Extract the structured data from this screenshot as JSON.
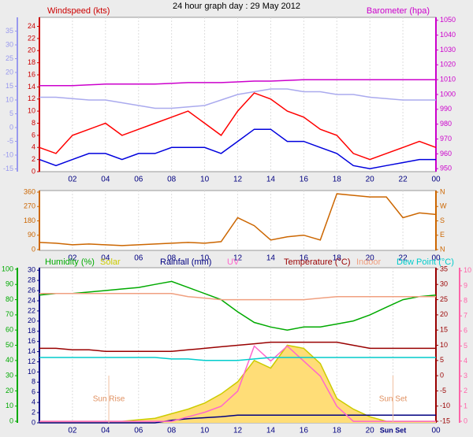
{
  "chart_data": [
    {
      "type": "line",
      "title": "24 hour graph day : 29 May 2012",
      "x": [
        0,
        1,
        2,
        3,
        4,
        5,
        6,
        7,
        8,
        9,
        10,
        11,
        12,
        13,
        14,
        15,
        16,
        17,
        18,
        19,
        20,
        21,
        22,
        23,
        24
      ],
      "xlim": [
        0,
        24
      ],
      "xticks": [
        {
          "value": 2,
          "label": "02"
        },
        {
          "value": 4,
          "label": "04"
        },
        {
          "value": 6,
          "label": "06"
        },
        {
          "value": 8,
          "label": "08"
        },
        10,
        12,
        14,
        16,
        18,
        20,
        22,
        {
          "value": 24,
          "label": "00"
        }
      ],
      "grid": true,
      "axes": [
        {
          "side": "left",
          "label": "Windspeed (kts)",
          "color": "#cc0000",
          "lim": [
            0,
            25.5
          ],
          "ticks": [
            0,
            2,
            4,
            6,
            8,
            10,
            12,
            14,
            16,
            18,
            20,
            22,
            24
          ]
        },
        {
          "side": "left",
          "color": "#9999ee",
          "lim": [
            -16,
            40
          ],
          "ticks": [
            -15,
            -10,
            -5,
            0,
            5,
            10,
            15,
            20,
            25,
            30,
            35
          ]
        },
        {
          "side": "right",
          "label": "Barometer (hpa)",
          "color": "#cc00cc",
          "lim": [
            948,
            1052
          ],
          "ticks": [
            950,
            960,
            970,
            980,
            990,
            1000,
            1010,
            1020,
            1030,
            1040,
            1050
          ]
        }
      ],
      "series": [
        {
          "color": "#ff0000",
          "axis": 0,
          "values": [
            4,
            3,
            6,
            7,
            8,
            6,
            7,
            8,
            9,
            10,
            8,
            6,
            10,
            13,
            12,
            10,
            9,
            7,
            6,
            3,
            2,
            3,
            4,
            5,
            4
          ]
        },
        {
          "color": "#0000dd",
          "axis": 0,
          "values": [
            2,
            1,
            2,
            3,
            3,
            2,
            3,
            3,
            4,
            4,
            4,
            3,
            5,
            7,
            7,
            5,
            5,
            4,
            3,
            1,
            0.5,
            1,
            1.5,
            2,
            2
          ]
        },
        {
          "color": "#aaaaee",
          "axis": 1,
          "values": [
            11,
            11,
            10.5,
            10,
            10,
            9,
            8,
            7,
            7,
            7.5,
            8,
            10,
            12,
            13,
            14,
            14,
            13,
            13,
            12,
            12,
            11,
            10.5,
            10,
            10,
            10
          ]
        },
        {
          "color": "#cc00cc",
          "axis": 2,
          "values": [
            1006,
            1006,
            1006,
            1006.5,
            1007,
            1007,
            1007,
            1007,
            1007.5,
            1008,
            1008,
            1008,
            1008.5,
            1009,
            1009,
            1009.5,
            1010,
            1010,
            1010,
            1010,
            1010,
            1010,
            1010,
            1010,
            1010
          ]
        }
      ]
    },
    {
      "type": "line",
      "x": [
        0,
        1,
        2,
        3,
        4,
        5,
        6,
        7,
        8,
        9,
        10,
        11,
        12,
        13,
        14,
        15,
        16,
        17,
        18,
        19,
        20,
        21,
        22,
        23,
        24
      ],
      "xlim": [
        0,
        24
      ],
      "xticks": [
        {
          "value": 2,
          "label": "02"
        },
        {
          "value": 4,
          "label": "04"
        },
        {
          "value": 6,
          "label": "06"
        },
        {
          "value": 8,
          "label": "08"
        },
        10,
        12,
        14,
        16,
        18,
        20,
        22,
        {
          "value": 24,
          "label": "00"
        }
      ],
      "grid": true,
      "axes": [
        {
          "side": "left",
          "color": "#cc6600",
          "lim": [
            -5,
            370
          ],
          "ticks": [
            0,
            90,
            180,
            270,
            360
          ]
        },
        {
          "side": "right",
          "color": "#cc6600",
          "lim": [
            -5,
            370
          ],
          "ticks": [
            {
              "value": 0,
              "label": "N"
            },
            {
              "value": 90,
              "label": "E"
            },
            {
              "value": 180,
              "label": "S"
            },
            {
              "value": 270,
              "label": "W"
            },
            {
              "value": 360,
              "label": "N"
            }
          ]
        }
      ],
      "series": [
        {
          "color": "#cc6600",
          "axis": 0,
          "values": [
            45,
            40,
            30,
            35,
            30,
            25,
            30,
            35,
            40,
            45,
            40,
            50,
            200,
            150,
            60,
            80,
            90,
            60,
            350,
            340,
            330,
            330,
            200,
            230,
            220
          ]
        }
      ]
    },
    {
      "type": "line",
      "x": [
        0,
        1,
        2,
        3,
        4,
        5,
        6,
        7,
        8,
        9,
        10,
        11,
        12,
        13,
        14,
        15,
        16,
        17,
        18,
        19,
        20,
        21,
        22,
        23,
        24
      ],
      "xlim": [
        0,
        24
      ],
      "xticks": [
        {
          "value": 2,
          "label": "02"
        },
        {
          "value": 4,
          "label": "04"
        },
        {
          "value": 6,
          "label": "06"
        },
        {
          "value": 8,
          "label": "08"
        },
        10,
        12,
        14,
        16,
        18,
        20,
        {
          "value": 21.4,
          "label": "Sun Set"
        },
        {
          "value": 24,
          "label": "00"
        }
      ],
      "grid": true,
      "axes": [
        {
          "side": "left",
          "color": "#000080",
          "lim": [
            0,
            30.5
          ],
          "ticks": [
            0,
            2,
            4,
            6,
            8,
            10,
            12,
            14,
            16,
            18,
            20,
            22,
            24,
            26,
            28,
            30
          ]
        },
        {
          "side": "left",
          "color": "#00aa00",
          "lim": [
            -1,
            101
          ],
          "ticks": [
            0,
            10,
            20,
            30,
            40,
            50,
            60,
            70,
            80,
            90,
            100
          ]
        },
        {
          "side": "right",
          "color": "#990000",
          "lim": [
            -15.5,
            35.5
          ],
          "ticks": [
            -15,
            -10,
            -5,
            0,
            5,
            10,
            15,
            20,
            25,
            30,
            35
          ]
        },
        {
          "side": "right",
          "color": "#ff66aa",
          "lim": [
            -0.1,
            10.2
          ],
          "ticks": [
            0,
            1,
            2,
            3,
            4,
            5,
            6,
            7,
            8,
            9,
            10
          ]
        }
      ],
      "series": [
        {
          "name": "Humidity (%)",
          "color": "#00aa00",
          "axis": 1,
          "values": [
            83,
            84,
            84,
            85,
            86,
            87,
            88,
            90,
            92,
            88,
            84,
            80,
            72,
            65,
            62,
            60,
            62,
            62,
            64,
            66,
            70,
            75,
            80,
            82,
            83
          ]
        },
        {
          "name": "Solar",
          "color": "#cccc00",
          "fill": "#ffdd77",
          "axis": 1,
          "values": [
            0,
            0,
            0,
            0,
            0,
            0,
            1,
            2,
            5,
            8,
            12,
            18,
            26,
            40,
            35,
            50,
            48,
            38,
            15,
            8,
            3,
            0,
            0,
            0,
            0
          ]
        },
        {
          "name": "Rainfall (mm)",
          "color": "#000080",
          "axis": 0,
          "values": [
            0,
            0,
            0,
            0,
            0,
            0,
            0,
            0,
            0.5,
            0.8,
            1,
            1.2,
            1.5,
            1.5,
            1.5,
            1.5,
            1.5,
            1.5,
            1.5,
            1.5,
            1.5,
            1.5,
            1.5,
            1.5,
            1.5
          ]
        },
        {
          "name": "UV",
          "color": "#ff66cc",
          "axis": 3,
          "values": [
            0,
            0,
            0,
            0,
            0,
            0,
            0,
            0,
            0,
            0.3,
            0.6,
            1,
            2,
            5,
            4,
            5,
            4,
            3,
            1,
            0,
            0,
            0,
            0,
            0,
            0
          ]
        },
        {
          "name": "Temperature (°C)",
          "color": "#990000",
          "axis": 2,
          "values": [
            9,
            9,
            8.5,
            8.5,
            8,
            8,
            8,
            8,
            8,
            8.5,
            9,
            9.5,
            10,
            10.5,
            11,
            11,
            11,
            11,
            11,
            10,
            9,
            9,
            9,
            9,
            9
          ]
        },
        {
          "name": "Indoor",
          "color": "#f0a080",
          "axis": 2,
          "values": [
            27,
            27,
            27,
            27,
            27,
            27,
            27,
            27,
            27,
            26,
            25.5,
            25,
            25,
            25,
            25,
            25,
            25,
            25.5,
            26,
            26,
            26,
            26,
            26,
            26,
            26
          ]
        },
        {
          "name": "Dew Point (°C)",
          "color": "#00cccc",
          "axis": 2,
          "values": [
            6,
            6,
            6,
            6,
            6,
            6,
            6,
            6,
            5.5,
            5.5,
            5,
            5,
            5,
            5.5,
            6,
            6,
            6,
            6,
            6,
            6,
            6,
            6,
            6,
            6,
            6
          ]
        }
      ],
      "annotations": [
        {
          "text": "Sun Rise",
          "x": 4.2
        },
        {
          "text": "Sun Set",
          "x": 21.4
        }
      ]
    }
  ]
}
